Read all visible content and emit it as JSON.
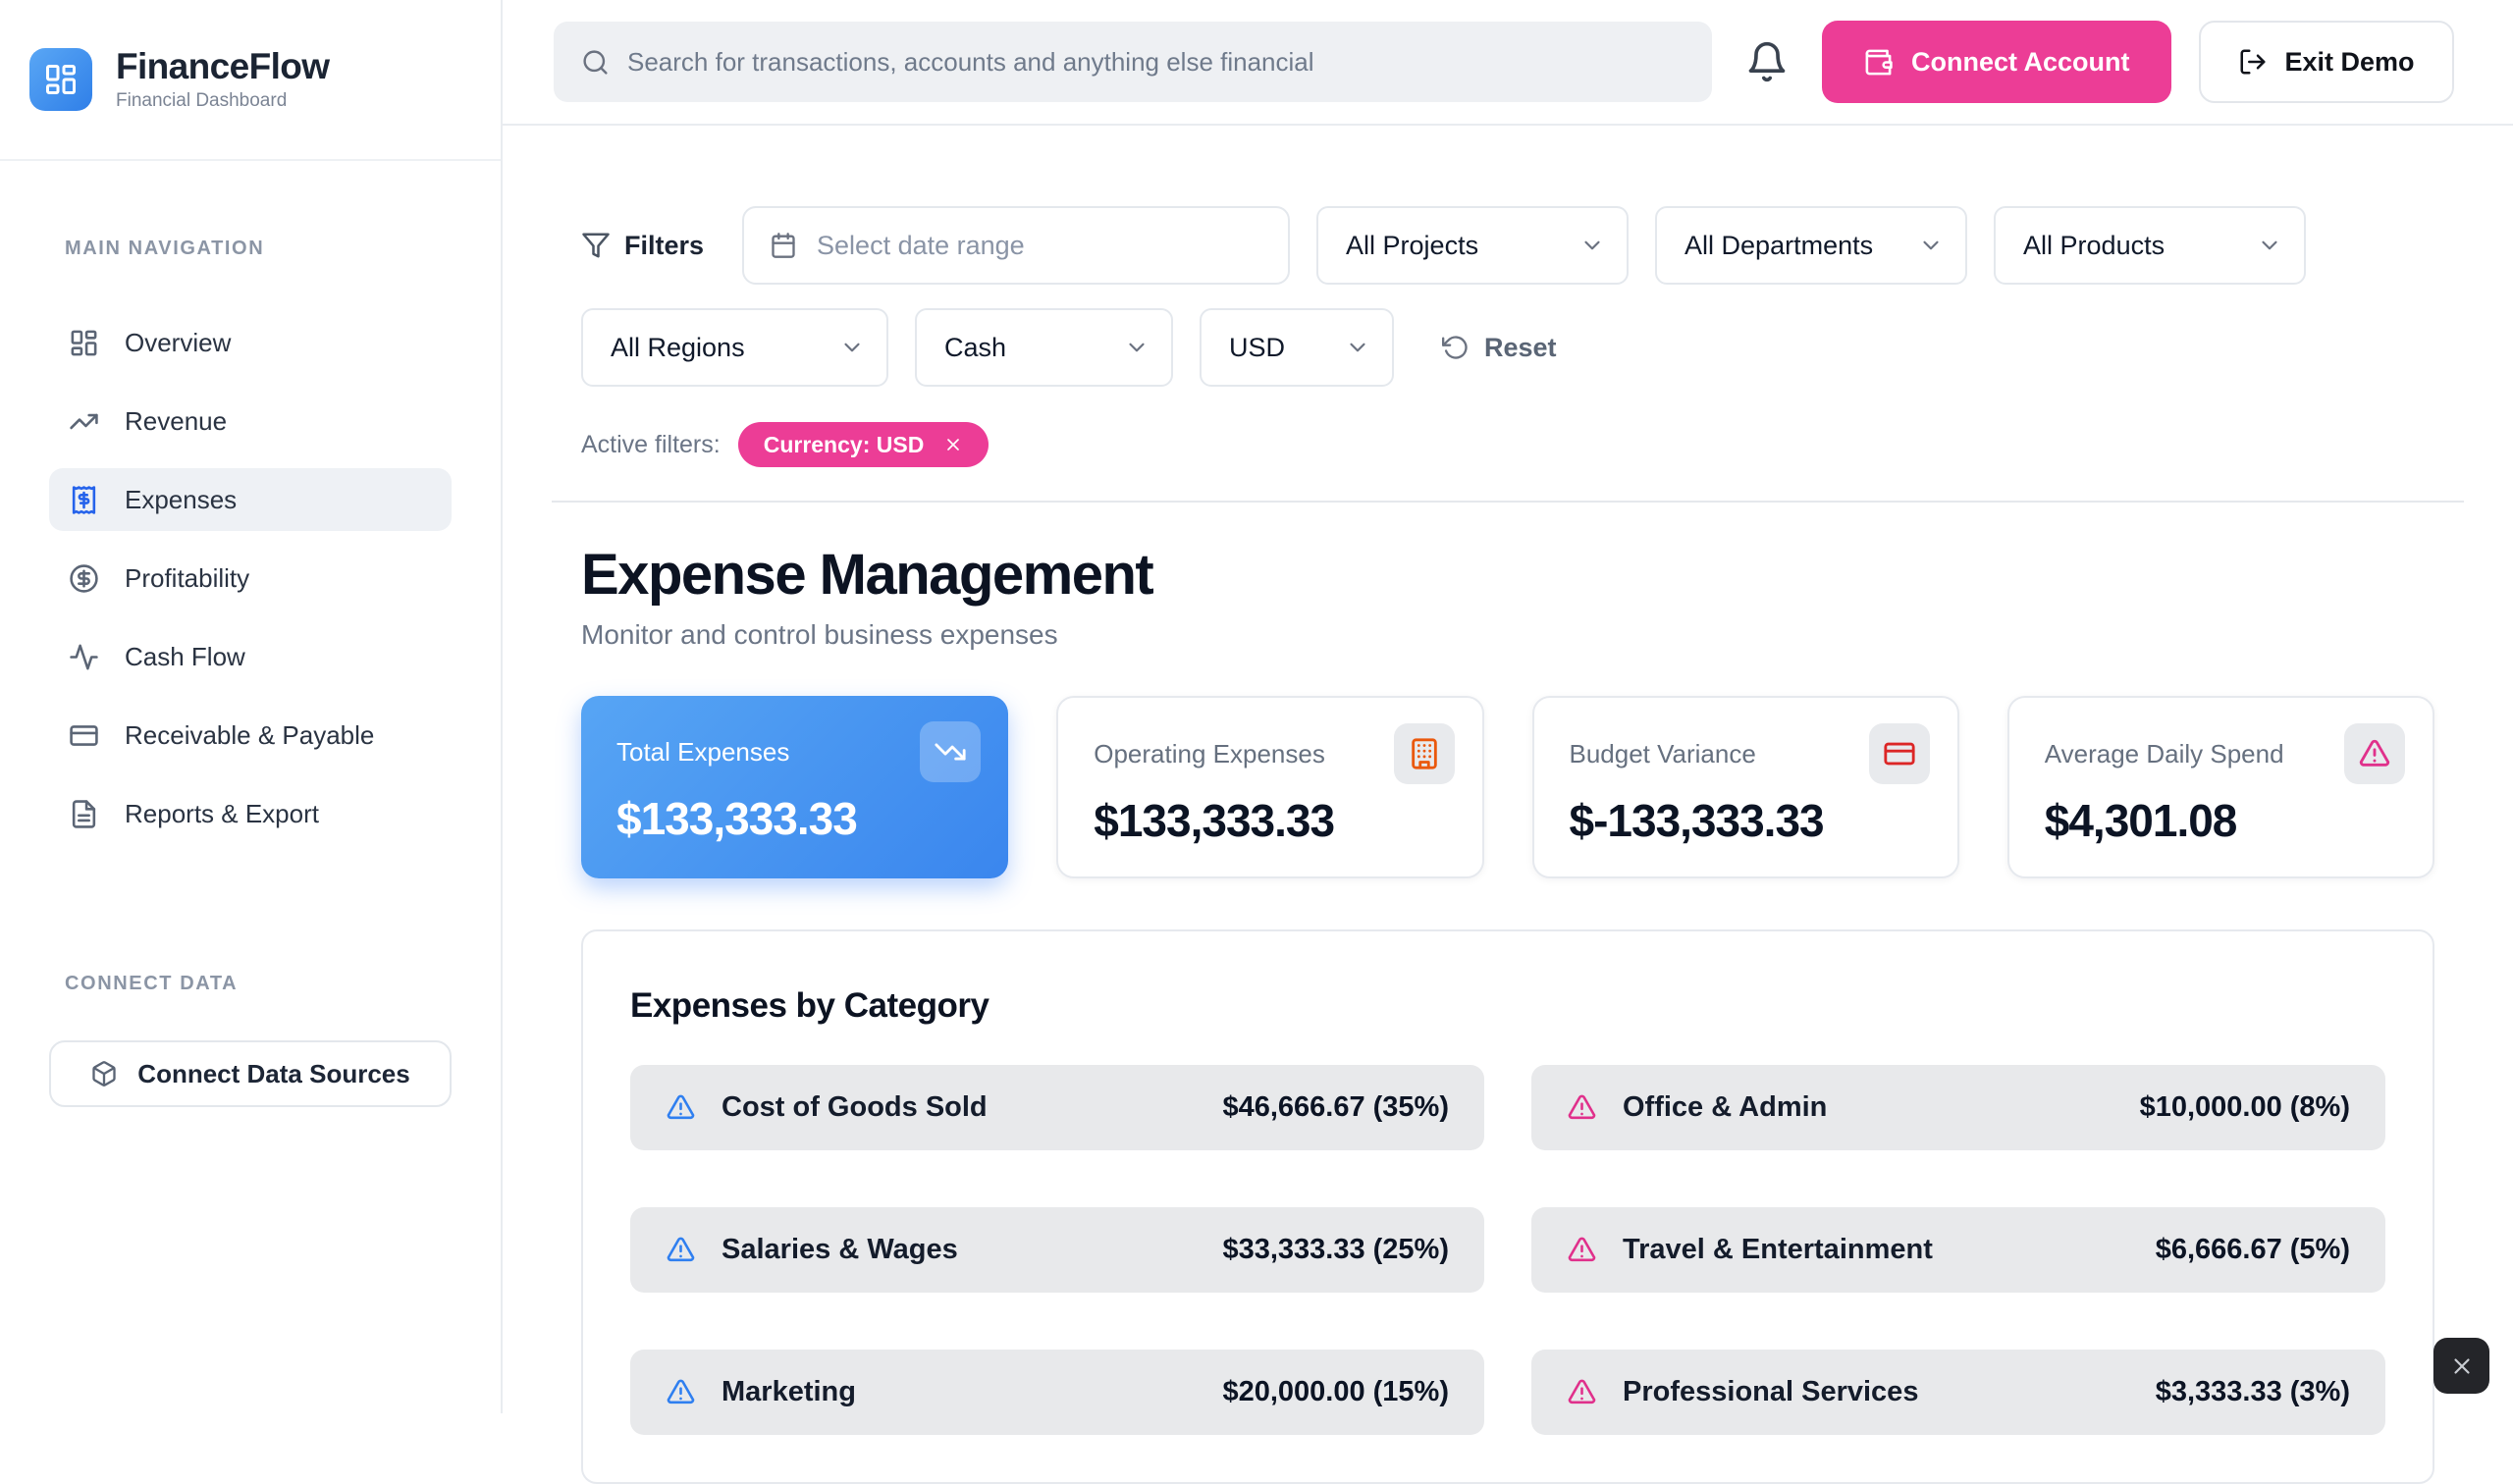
{
  "brand": {
    "name": "FinanceFlow",
    "tagline": "Financial Dashboard",
    "logo_icon": "layout-dashboard"
  },
  "topbar": {
    "search": {
      "placeholder": "Search for transactions, accounts and anything else financial",
      "icon": "search"
    },
    "bell_icon": "bell",
    "connect_account": {
      "label": "Connect Account",
      "icon": "wallet"
    },
    "exit_demo": {
      "label": "Exit Demo",
      "icon": "log-out"
    }
  },
  "sidebar": {
    "section_label": "MAIN NAVIGATION",
    "items": [
      {
        "label": "Overview",
        "icon": "layout-dashboard",
        "state": ""
      },
      {
        "label": "Revenue",
        "icon": "trending-up",
        "state": ""
      },
      {
        "label": "Expenses",
        "icon": "receipt",
        "state": "active"
      },
      {
        "label": "Profitability",
        "icon": "circle-dollar",
        "state": ""
      },
      {
        "label": "Cash Flow",
        "icon": "activity",
        "state": ""
      },
      {
        "label": "Receivable & Payable",
        "icon": "credit-card",
        "state": ""
      },
      {
        "label": "Reports & Export",
        "icon": "file-text",
        "state": ""
      }
    ],
    "connect_label": "CONNECT DATA",
    "connect_button": {
      "label": "Connect Data Sources",
      "icon": "package"
    }
  },
  "filters": {
    "label": "Filters",
    "icon": "funnel",
    "date_range": {
      "placeholder": "Select date range",
      "icon": "calendar"
    },
    "select_chevron_icon": "chevron-down",
    "row1": [
      {
        "value": "All Projects",
        "size": "w-lg"
      },
      {
        "value": "All Departments",
        "size": "w-lg"
      },
      {
        "value": "All Products",
        "size": "w-lg"
      }
    ],
    "row2": [
      {
        "value": "All Regions",
        "size": "w-md"
      },
      {
        "value": "Cash",
        "size": "w-sm"
      },
      {
        "value": "USD",
        "size": "w-xs"
      }
    ],
    "reset": {
      "label": "Reset",
      "icon": "rotate-ccw"
    },
    "active_label": "Active filters:",
    "active_chip": {
      "label": "Currency: USD",
      "close_icon": "x"
    }
  },
  "page": {
    "title": "Expense Management",
    "subtitle": "Monitor and control business expenses"
  },
  "stats": [
    {
      "label": "Total Expenses",
      "value": "$133,333.33",
      "icon": "trending-down",
      "variant": "primary",
      "accent": "accent-white"
    },
    {
      "label": "Operating Expenses",
      "value": "$133,333.33",
      "icon": "building",
      "variant": "default",
      "accent": "accent-orange"
    },
    {
      "label": "Budget Variance",
      "value": "$-133,333.33",
      "icon": "credit-card",
      "variant": "default",
      "accent": "accent-red"
    },
    {
      "label": "Average Daily Spend",
      "value": "$4,301.08",
      "icon": "alert-triangle",
      "variant": "default",
      "accent": "accent-pink"
    }
  ],
  "categories": {
    "title": "Expenses by Category",
    "rows": [
      {
        "name": "Cost of Goods Sold",
        "value": "$46,666.67 (35%)",
        "tone": "tone-blue",
        "icon": "alert-triangle"
      },
      {
        "name": "Office & Admin",
        "value": "$10,000.00 (8%)",
        "tone": "tone-pink",
        "icon": "alert-triangle"
      },
      {
        "name": "Salaries & Wages",
        "value": "$33,333.33 (25%)",
        "tone": "tone-blue",
        "icon": "alert-triangle"
      },
      {
        "name": "Travel & Entertainment",
        "value": "$6,666.67 (5%)",
        "tone": "tone-pink",
        "icon": "alert-triangle"
      },
      {
        "name": "Marketing",
        "value": "$20,000.00 (15%)",
        "tone": "tone-blue",
        "icon": "alert-triangle"
      },
      {
        "name": "Professional Services",
        "value": "$3,333.33 (3%)",
        "tone": "tone-pink",
        "icon": "alert-triangle"
      }
    ]
  },
  "overlay": {
    "close_icon": "x"
  },
  "colors": {
    "accent_pink": "#ec3d96",
    "accent_blue": "#3b82f6",
    "card_gradient_start": "#57a5f4",
    "card_gradient_end": "#3a86ee",
    "icon_orange": "#ea580c",
    "icon_red": "#dc2626",
    "icon_pink": "#e0308b",
    "nav_active_icon": "#2563eb"
  }
}
